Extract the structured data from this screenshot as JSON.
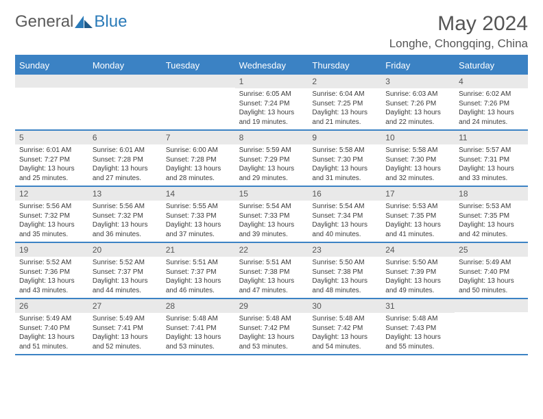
{
  "brand": {
    "part1": "General",
    "part2": "Blue"
  },
  "title": "May 2024",
  "location": "Longhe, Chongqing, China",
  "colors": {
    "header_bg": "#3b82c4",
    "header_text": "#ffffff",
    "daynum_bg": "#e9e9e9",
    "text": "#3a3a3a",
    "brand_blue": "#2a7ab8"
  },
  "day_names": [
    "Sunday",
    "Monday",
    "Tuesday",
    "Wednesday",
    "Thursday",
    "Friday",
    "Saturday"
  ],
  "weeks": [
    [
      {
        "n": "",
        "sr": "",
        "ss": "",
        "dl": ""
      },
      {
        "n": "",
        "sr": "",
        "ss": "",
        "dl": ""
      },
      {
        "n": "",
        "sr": "",
        "ss": "",
        "dl": ""
      },
      {
        "n": "1",
        "sr": "Sunrise: 6:05 AM",
        "ss": "Sunset: 7:24 PM",
        "dl": "Daylight: 13 hours and 19 minutes."
      },
      {
        "n": "2",
        "sr": "Sunrise: 6:04 AM",
        "ss": "Sunset: 7:25 PM",
        "dl": "Daylight: 13 hours and 21 minutes."
      },
      {
        "n": "3",
        "sr": "Sunrise: 6:03 AM",
        "ss": "Sunset: 7:26 PM",
        "dl": "Daylight: 13 hours and 22 minutes."
      },
      {
        "n": "4",
        "sr": "Sunrise: 6:02 AM",
        "ss": "Sunset: 7:26 PM",
        "dl": "Daylight: 13 hours and 24 minutes."
      }
    ],
    [
      {
        "n": "5",
        "sr": "Sunrise: 6:01 AM",
        "ss": "Sunset: 7:27 PM",
        "dl": "Daylight: 13 hours and 25 minutes."
      },
      {
        "n": "6",
        "sr": "Sunrise: 6:01 AM",
        "ss": "Sunset: 7:28 PM",
        "dl": "Daylight: 13 hours and 27 minutes."
      },
      {
        "n": "7",
        "sr": "Sunrise: 6:00 AM",
        "ss": "Sunset: 7:28 PM",
        "dl": "Daylight: 13 hours and 28 minutes."
      },
      {
        "n": "8",
        "sr": "Sunrise: 5:59 AM",
        "ss": "Sunset: 7:29 PM",
        "dl": "Daylight: 13 hours and 29 minutes."
      },
      {
        "n": "9",
        "sr": "Sunrise: 5:58 AM",
        "ss": "Sunset: 7:30 PM",
        "dl": "Daylight: 13 hours and 31 minutes."
      },
      {
        "n": "10",
        "sr": "Sunrise: 5:58 AM",
        "ss": "Sunset: 7:30 PM",
        "dl": "Daylight: 13 hours and 32 minutes."
      },
      {
        "n": "11",
        "sr": "Sunrise: 5:57 AM",
        "ss": "Sunset: 7:31 PM",
        "dl": "Daylight: 13 hours and 33 minutes."
      }
    ],
    [
      {
        "n": "12",
        "sr": "Sunrise: 5:56 AM",
        "ss": "Sunset: 7:32 PM",
        "dl": "Daylight: 13 hours and 35 minutes."
      },
      {
        "n": "13",
        "sr": "Sunrise: 5:56 AM",
        "ss": "Sunset: 7:32 PM",
        "dl": "Daylight: 13 hours and 36 minutes."
      },
      {
        "n": "14",
        "sr": "Sunrise: 5:55 AM",
        "ss": "Sunset: 7:33 PM",
        "dl": "Daylight: 13 hours and 37 minutes."
      },
      {
        "n": "15",
        "sr": "Sunrise: 5:54 AM",
        "ss": "Sunset: 7:33 PM",
        "dl": "Daylight: 13 hours and 39 minutes."
      },
      {
        "n": "16",
        "sr": "Sunrise: 5:54 AM",
        "ss": "Sunset: 7:34 PM",
        "dl": "Daylight: 13 hours and 40 minutes."
      },
      {
        "n": "17",
        "sr": "Sunrise: 5:53 AM",
        "ss": "Sunset: 7:35 PM",
        "dl": "Daylight: 13 hours and 41 minutes."
      },
      {
        "n": "18",
        "sr": "Sunrise: 5:53 AM",
        "ss": "Sunset: 7:35 PM",
        "dl": "Daylight: 13 hours and 42 minutes."
      }
    ],
    [
      {
        "n": "19",
        "sr": "Sunrise: 5:52 AM",
        "ss": "Sunset: 7:36 PM",
        "dl": "Daylight: 13 hours and 43 minutes."
      },
      {
        "n": "20",
        "sr": "Sunrise: 5:52 AM",
        "ss": "Sunset: 7:37 PM",
        "dl": "Daylight: 13 hours and 44 minutes."
      },
      {
        "n": "21",
        "sr": "Sunrise: 5:51 AM",
        "ss": "Sunset: 7:37 PM",
        "dl": "Daylight: 13 hours and 46 minutes."
      },
      {
        "n": "22",
        "sr": "Sunrise: 5:51 AM",
        "ss": "Sunset: 7:38 PM",
        "dl": "Daylight: 13 hours and 47 minutes."
      },
      {
        "n": "23",
        "sr": "Sunrise: 5:50 AM",
        "ss": "Sunset: 7:38 PM",
        "dl": "Daylight: 13 hours and 48 minutes."
      },
      {
        "n": "24",
        "sr": "Sunrise: 5:50 AM",
        "ss": "Sunset: 7:39 PM",
        "dl": "Daylight: 13 hours and 49 minutes."
      },
      {
        "n": "25",
        "sr": "Sunrise: 5:49 AM",
        "ss": "Sunset: 7:40 PM",
        "dl": "Daylight: 13 hours and 50 minutes."
      }
    ],
    [
      {
        "n": "26",
        "sr": "Sunrise: 5:49 AM",
        "ss": "Sunset: 7:40 PM",
        "dl": "Daylight: 13 hours and 51 minutes."
      },
      {
        "n": "27",
        "sr": "Sunrise: 5:49 AM",
        "ss": "Sunset: 7:41 PM",
        "dl": "Daylight: 13 hours and 52 minutes."
      },
      {
        "n": "28",
        "sr": "Sunrise: 5:48 AM",
        "ss": "Sunset: 7:41 PM",
        "dl": "Daylight: 13 hours and 53 minutes."
      },
      {
        "n": "29",
        "sr": "Sunrise: 5:48 AM",
        "ss": "Sunset: 7:42 PM",
        "dl": "Daylight: 13 hours and 53 minutes."
      },
      {
        "n": "30",
        "sr": "Sunrise: 5:48 AM",
        "ss": "Sunset: 7:42 PM",
        "dl": "Daylight: 13 hours and 54 minutes."
      },
      {
        "n": "31",
        "sr": "Sunrise: 5:48 AM",
        "ss": "Sunset: 7:43 PM",
        "dl": "Daylight: 13 hours and 55 minutes."
      },
      {
        "n": "",
        "sr": "",
        "ss": "",
        "dl": ""
      }
    ]
  ]
}
